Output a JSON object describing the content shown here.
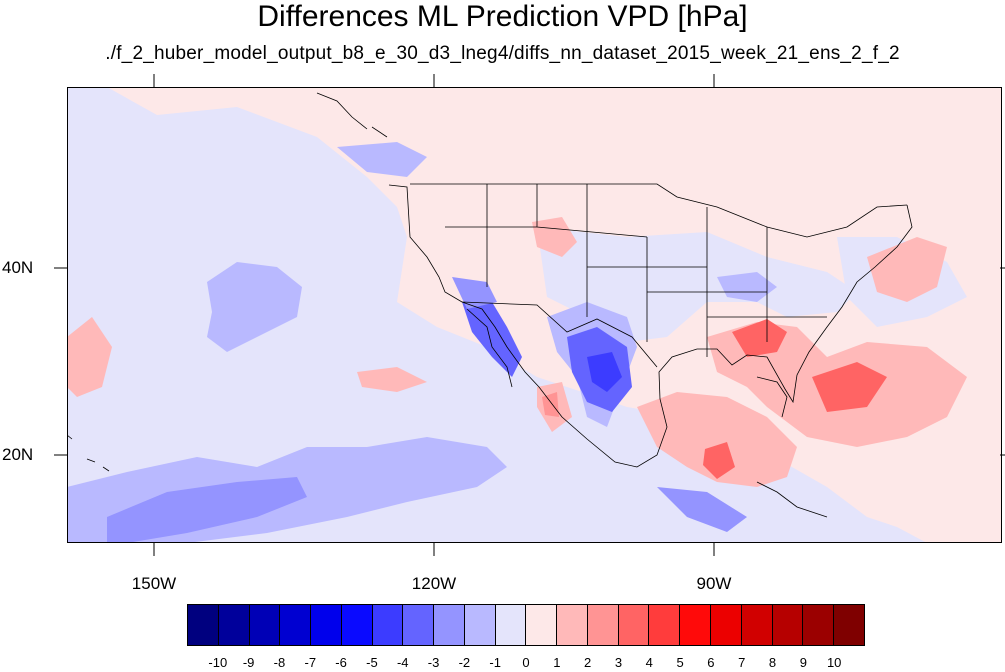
{
  "title": "Differences ML Prediction VPD [hPa]",
  "subtitle": "./f_2_huber_model_output_b8_e_30_d3_lneg4/diffs_nn_dataset_2015_week_21_ens_2_f_2",
  "axes": {
    "lat_labels": [
      "40N",
      "20N"
    ],
    "lon_labels": [
      "150W",
      "120W",
      "90W"
    ]
  },
  "colorbar": {
    "levels": [
      "-10",
      "-9",
      "-8",
      "-7",
      "-6",
      "-5",
      "-4",
      "-3",
      "-2",
      "-1",
      "0",
      "1",
      "2",
      "3",
      "4",
      "5",
      "6",
      "7",
      "8",
      "9",
      "10"
    ],
    "colors": [
      "#00007f",
      "#00009b",
      "#0000b6",
      "#0000d1",
      "#0000ec",
      "#0a0aff",
      "#3c3cff",
      "#6464ff",
      "#9494ff",
      "#b9b9ff",
      "#e4e4fb",
      "#fde8e8",
      "#ffb9b9",
      "#ff9494",
      "#ff6464",
      "#ff3c3c",
      "#ff0a0a",
      "#ec0000",
      "#d10000",
      "#b60000",
      "#9b0000",
      "#7f0000"
    ]
  },
  "colors": {
    "background": "#fde8e8",
    "land_lines": "#000000"
  }
}
